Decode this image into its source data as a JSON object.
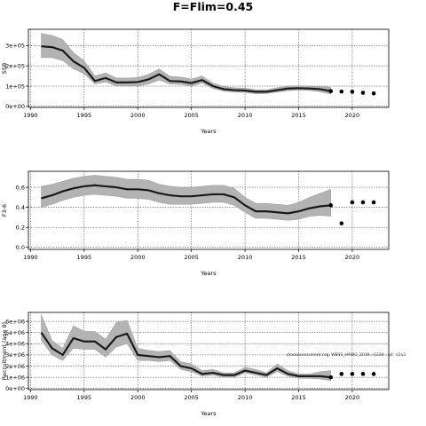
{
  "figure": {
    "title": "F=Flim=0.45",
    "note": "stockassessment.org, WBSS_HAWG_2019, r1234 , git: e2a3"
  },
  "chart_data": [
    {
      "type": "line",
      "xlabel": "Years",
      "ylabel": "SSB",
      "xlim": [
        1989.8,
        2023.4
      ],
      "ylim": [
        -5000,
        380000
      ],
      "xticks": [
        1990,
        1995,
        2000,
        2005,
        2010,
        2015,
        2020
      ],
      "xtick_labels": [
        "1990",
        "1995",
        "2000",
        "2005",
        "2010",
        "2015",
        "2020"
      ],
      "yticks": [
        0,
        100000,
        200000,
        300000
      ],
      "ytick_labels": [
        "0e+00",
        "1e+05",
        "2e+05",
        "3e+05"
      ],
      "years": [
        1991,
        1992,
        1993,
        1994,
        1995,
        1996,
        1997,
        1998,
        1999,
        2000,
        2001,
        2002,
        2003,
        2004,
        2005,
        2006,
        2007,
        2008,
        2009,
        2010,
        2011,
        2012,
        2013,
        2014,
        2015,
        2016,
        2017,
        2018
      ],
      "estimate": [
        296000,
        292000,
        275000,
        222000,
        190000,
        125000,
        140000,
        118000,
        118000,
        120000,
        133000,
        158000,
        125000,
        123000,
        115000,
        130000,
        100000,
        85000,
        80000,
        78000,
        72000,
        72000,
        80000,
        88000,
        90000,
        88000,
        85000,
        75000
      ],
      "lower": [
        240000,
        240000,
        225000,
        185000,
        160000,
        110000,
        120000,
        100000,
        100000,
        100000,
        110000,
        130000,
        110000,
        108000,
        100000,
        115000,
        88000,
        75000,
        70000,
        68000,
        62000,
        63000,
        70000,
        77000,
        80000,
        78000,
        72000,
        60000
      ],
      "upper": [
        360000,
        350000,
        330000,
        265000,
        225000,
        150000,
        165000,
        140000,
        140000,
        142000,
        158000,
        185000,
        148000,
        145000,
        135000,
        150000,
        115000,
        98000,
        92000,
        90000,
        82000,
        82000,
        92000,
        100000,
        102000,
        100000,
        98000,
        95000
      ],
      "forecast_years": [
        2018,
        2019,
        2020,
        2021,
        2022
      ],
      "forecast": [
        75000,
        73000,
        72000,
        67000,
        64000
      ]
    },
    {
      "type": "line",
      "xlabel": "Years",
      "ylabel": "F3-6",
      "xlim": [
        1989.8,
        2023.4
      ],
      "ylim": [
        -0.02,
        0.76
      ],
      "xticks": [
        1990,
        1995,
        2000,
        2005,
        2010,
        2015,
        2020
      ],
      "xtick_labels": [
        "1990",
        "1995",
        "2000",
        "2005",
        "2010",
        "2015",
        "2020"
      ],
      "yticks": [
        0.0,
        0.2,
        0.4,
        0.6
      ],
      "ytick_labels": [
        "0.0",
        "0.2",
        "0.4",
        "0.6"
      ],
      "years": [
        1991,
        1992,
        1993,
        1994,
        1995,
        1996,
        1997,
        1998,
        1999,
        2000,
        2001,
        2002,
        2003,
        2004,
        2005,
        2006,
        2007,
        2008,
        2009,
        2010,
        2011,
        2012,
        2013,
        2014,
        2015,
        2016,
        2017,
        2018
      ],
      "estimate": [
        0.49,
        0.52,
        0.56,
        0.59,
        0.61,
        0.62,
        0.61,
        0.6,
        0.58,
        0.58,
        0.57,
        0.54,
        0.52,
        0.51,
        0.51,
        0.52,
        0.53,
        0.53,
        0.5,
        0.42,
        0.36,
        0.36,
        0.35,
        0.34,
        0.36,
        0.39,
        0.41,
        0.42
      ],
      "lower": [
        0.4,
        0.43,
        0.47,
        0.5,
        0.52,
        0.53,
        0.52,
        0.51,
        0.49,
        0.49,
        0.48,
        0.45,
        0.43,
        0.43,
        0.43,
        0.44,
        0.45,
        0.45,
        0.42,
        0.35,
        0.29,
        0.29,
        0.28,
        0.27,
        0.28,
        0.31,
        0.32,
        0.31
      ],
      "upper": [
        0.61,
        0.63,
        0.66,
        0.69,
        0.71,
        0.72,
        0.71,
        0.7,
        0.68,
        0.68,
        0.67,
        0.63,
        0.61,
        0.6,
        0.6,
        0.61,
        0.62,
        0.62,
        0.59,
        0.5,
        0.44,
        0.44,
        0.43,
        0.42,
        0.45,
        0.5,
        0.54,
        0.58
      ],
      "forecast_years": [
        2018,
        2019,
        2020,
        2021,
        2022
      ],
      "forecast": [
        0.42,
        0.24,
        0.45,
        0.45,
        0.45
      ]
    },
    {
      "type": "line",
      "xlabel": "Years",
      "ylabel": "Recruitment (age 0)",
      "xlim": [
        1989.8,
        2023.4
      ],
      "ylim": [
        -100000,
        6800000
      ],
      "xticks": [
        1990,
        1995,
        2000,
        2005,
        2010,
        2015,
        2020
      ],
      "xtick_labels": [
        "1990",
        "1995",
        "2000",
        "2005",
        "2010",
        "2015",
        "2020"
      ],
      "yticks": [
        0,
        1000000,
        2000000,
        3000000,
        4000000,
        5000000,
        6000000
      ],
      "ytick_labels": [
        "0e+00",
        "1e+06",
        "2e+06",
        "3e+06",
        "4e+06",
        "5e+06",
        "6e+06"
      ],
      "years": [
        1991,
        1992,
        1993,
        1994,
        1995,
        1996,
        1997,
        1998,
        1999,
        2000,
        2001,
        2002,
        2003,
        2004,
        2005,
        2006,
        2007,
        2008,
        2009,
        2010,
        2011,
        2012,
        2013,
        2014,
        2015,
        2016,
        2017,
        2018
      ],
      "estimate": [
        5000000,
        3600000,
        3000000,
        4500000,
        4200000,
        4200000,
        3500000,
        4600000,
        4900000,
        3000000,
        2900000,
        2800000,
        2900000,
        2000000,
        1800000,
        1300000,
        1400000,
        1200000,
        1200000,
        1600000,
        1400000,
        1200000,
        1800000,
        1300000,
        1100000,
        1100000,
        1100000,
        1000000
      ],
      "lower": [
        4300000,
        3000000,
        2500000,
        3600000,
        3500000,
        3500000,
        2800000,
        3700000,
        4000000,
        2500000,
        2500000,
        2400000,
        2500000,
        1700000,
        1500000,
        1100000,
        1200000,
        1000000,
        1000000,
        1400000,
        1200000,
        1000000,
        1500000,
        1100000,
        900000,
        900000,
        850000,
        700000
      ],
      "upper": [
        6600000,
        4300000,
        3600000,
        5600000,
        5100000,
        5100000,
        4400000,
        5900000,
        6100000,
        3600000,
        3400000,
        3300000,
        3400000,
        2400000,
        2200000,
        1600000,
        1700000,
        1400000,
        1400000,
        1900000,
        1700000,
        1400000,
        2200000,
        1600000,
        1300000,
        1300000,
        1500000,
        1600000
      ],
      "forecast_years": [
        2018,
        2019,
        2020,
        2021,
        2022
      ],
      "forecast": [
        1000000,
        1300000,
        1300000,
        1300000,
        1300000
      ]
    }
  ]
}
